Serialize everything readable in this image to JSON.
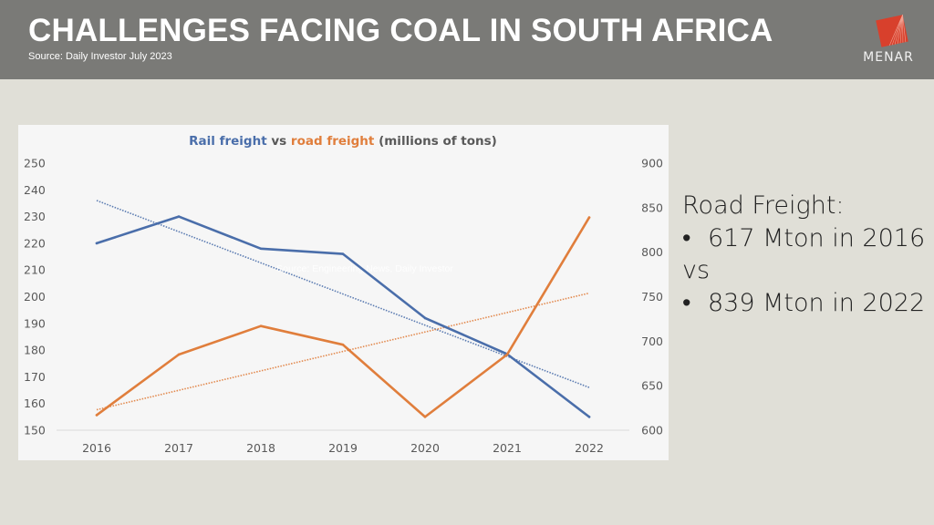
{
  "header": {
    "title": "CHALLENGES FACING COAL IN SOUTH AFRICA",
    "source": "Source: Daily Investor July 2023",
    "logo_text": "MENAR",
    "logo_icon": "menar-logo-icon"
  },
  "colors": {
    "header_bg": "#7a7a77",
    "page_bg": "#e0dfd7",
    "rail": "#4a6eaa",
    "road": "#e07e3c",
    "logo": "#d8402c"
  },
  "side_panel": {
    "heading": "Road Freight:",
    "bullet_1": "617 Mton in 2016",
    "connector": "vs",
    "bullet_2": "839 Mton in 2022",
    "bullet_glyph": "•"
  },
  "chart_data": {
    "type": "line",
    "title_parts": [
      {
        "text": "Rail freight",
        "series": "rail"
      },
      {
        "text": " vs ",
        "series": null
      },
      {
        "text": "road freight",
        "series": "road"
      },
      {
        "text": " (millions of tons)",
        "series": null
      }
    ],
    "title": "Rail freight vs road freight (millions of tons)",
    "watermark": "Source: Engineering News, Daily Investor",
    "categories": [
      "2016",
      "2017",
      "2018",
      "2019",
      "2020",
      "2021",
      "2022"
    ],
    "left_axis": {
      "min": 150,
      "max": 250,
      "step": 10,
      "ticks": [
        "150",
        "160",
        "170",
        "180",
        "190",
        "200",
        "210",
        "220",
        "230",
        "240",
        "250"
      ]
    },
    "right_axis": {
      "min": 600,
      "max": 900,
      "step": 50,
      "ticks": [
        "600",
        "650",
        "700",
        "750",
        "800",
        "850",
        "900"
      ]
    },
    "series": [
      {
        "name": "Rail freight",
        "key": "rail",
        "axis": "left",
        "values": [
          220,
          230,
          218,
          216,
          192,
          178.5,
          155
        ],
        "trendline": {
          "start": 236,
          "end": 166
        }
      },
      {
        "name": "Road freight",
        "key": "road",
        "axis": "right",
        "values": [
          617,
          685,
          717,
          696,
          615,
          685,
          839
        ],
        "trendline": {
          "start": 623,
          "end": 754
        }
      }
    ],
    "grid": false,
    "legend": "none"
  }
}
